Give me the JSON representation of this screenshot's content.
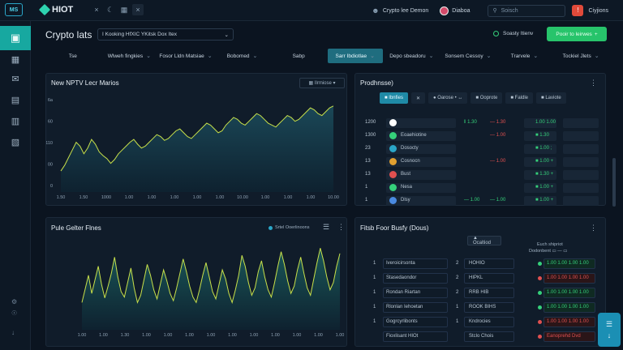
{
  "app": {
    "logo_text": "MS",
    "brand": "HIOT",
    "top_tools": [
      "×",
      "☾",
      "▦",
      "×"
    ]
  },
  "topbar": {
    "user1": "Crypto lee Demon",
    "user2": "Diaboa",
    "search_placeholder": "Soisch",
    "notif_glyph": "!",
    "user3": "Ciyjions"
  },
  "sidebar": {
    "items": [
      "▣",
      "▦",
      "✉",
      "▤",
      "▥",
      "▧"
    ],
    "bottom": [
      "⚙",
      "☉",
      "↓"
    ]
  },
  "header": {
    "title": "Crypto lats",
    "pair_select": "I Kooking HfXIC YKitsk Dox Itex",
    "status": "Soasty Itienv",
    "primary_btn": "Pooir to leirwes"
  },
  "tabs": [
    {
      "label": "Tse",
      "chevron": false,
      "active": false
    },
    {
      "label": "Wlweh fingkies",
      "chevron": true,
      "active": false
    },
    {
      "label": "Fosor Lldn Matsiae",
      "chevron": true,
      "active": false
    },
    {
      "label": "Bobomed",
      "chevron": true,
      "active": false
    },
    {
      "label": "Sabp",
      "chevron": false,
      "active": false
    },
    {
      "label": "Sarr Ibdiotlae",
      "chevron": true,
      "active": true
    },
    {
      "label": "Depo sbeadoru",
      "chevron": true,
      "active": false
    },
    {
      "label": "Sonsem Cessoy",
      "chevron": true,
      "active": false
    },
    {
      "label": "Trarvele",
      "chevron": true,
      "active": false
    },
    {
      "label": "Tockiel Jlets",
      "chevron": true,
      "active": false
    }
  ],
  "chart1": {
    "panel_title": "New NPTV Lecr Marios",
    "range_label": "▦ Ilrmiose ▾",
    "kebab": "⋮"
  },
  "chart_data": [
    {
      "type": "area",
      "title": "New NPTV Lecr Marios",
      "xlabel": "",
      "ylabel": "",
      "y_ticks": [
        "6a",
        "60",
        "110",
        "00",
        "0"
      ],
      "x_ticks": [
        "1.50",
        "1.50",
        "1000",
        "1.00",
        "1.00",
        "1.00",
        "1.00",
        "1.00",
        "10.00",
        "1.00",
        "1.00",
        "1.00",
        "10.00"
      ],
      "ylim": [
        0,
        100
      ],
      "series": [
        {
          "values": [
            22,
            28,
            36,
            44,
            52,
            48,
            40,
            46,
            55,
            50,
            42,
            38,
            35,
            30,
            34,
            40,
            44,
            48,
            52,
            55,
            50,
            46,
            48,
            52,
            56,
            60,
            58,
            54,
            56,
            60,
            64,
            66,
            62,
            58,
            56,
            60,
            64,
            68,
            72,
            70,
            66,
            62,
            64,
            70,
            74,
            78,
            76,
            72,
            70,
            74,
            78,
            82,
            80,
            76,
            72,
            70,
            68,
            72,
            76,
            80,
            78,
            74,
            76,
            80,
            84,
            88,
            86,
            82,
            80,
            84,
            88,
            90
          ]
        }
      ],
      "grid": false,
      "colors": {
        "line": "#c8e04a",
        "fill": "#1b4a5a"
      }
    },
    {
      "type": "area",
      "title": "Pule Gelter Flnes",
      "xlabel": "",
      "ylabel": "",
      "x_ticks": [
        "1.00",
        "1.00",
        "1.30",
        "1.00",
        "1.00",
        "1.00",
        "1.00",
        "1.00",
        "1.00",
        "1.00",
        "1.00",
        "1.00",
        "1.00"
      ],
      "ylim": [
        0,
        100
      ],
      "series": [
        {
          "values": [
            30,
            45,
            60,
            40,
            55,
            70,
            50,
            35,
            48,
            62,
            80,
            58,
            42,
            36,
            52,
            68,
            46,
            30,
            38,
            55,
            72,
            60,
            44,
            34,
            50,
            66,
            54,
            40,
            32,
            46,
            62,
            78,
            64,
            48,
            36,
            30,
            44,
            60,
            74,
            58,
            42,
            34,
            50,
            66,
            56,
            40,
            30,
            44,
            60,
            82,
            70,
            52,
            38,
            46,
            64,
            76,
            58,
            44,
            36,
            52,
            70,
            86,
            72,
            54,
            40,
            48,
            66,
            80,
            62,
            46,
            38,
            56,
            74,
            90,
            76,
            58,
            44,
            52,
            70,
            84
          ]
        }
      ],
      "grid": false,
      "colors": {
        "line": "#c8e04a",
        "fill": "#1a5b5c"
      }
    }
  ],
  "chart2": {
    "panel_title": "Pule Gelter Flnes",
    "legend": "Srtel Ooerlinoons",
    "kebab": "⋮",
    "menu_icon": "☰"
  },
  "watchlist": {
    "panel_title": "Prodhnsse)",
    "kebab": "⋮",
    "toolbar": [
      {
        "label": "■ Ibnfies",
        "primary": true
      },
      {
        "label": "✕",
        "primary": false
      },
      {
        "label": "● Oarose • ↔",
        "primary": false
      },
      {
        "label": "■ Ooprote",
        "primary": false
      },
      {
        "label": "■ Faldle",
        "primary": false
      },
      {
        "label": "■ Laviote",
        "primary": false
      }
    ],
    "rows": [
      {
        "num": "1200",
        "name": "",
        "v1": "‖ 1.30",
        "v2": "— 1.30",
        "v3": "1.00 1.00",
        "v4": "",
        "color": "#ffffff",
        "v1c": "green",
        "v2c": "red"
      },
      {
        "num": "1300",
        "name": "Eoaehiotine",
        "v1": "",
        "v2": "— 1.00",
        "v3": "■ 1.30",
        "v4": "",
        "color": "#35d07a",
        "v1c": "green",
        "v2c": "red"
      },
      {
        "num": "23",
        "name": "Dosocty",
        "v1": "",
        "v2": "",
        "v3": "■ 1.00 ;",
        "v4": "",
        "color": "#2aa6c8",
        "v1c": "green",
        "v2c": "red"
      },
      {
        "num": "13",
        "name": "Cosnocn",
        "v1": "",
        "v2": "— 1.00",
        "v3": "■ 1.00 +",
        "v4": "",
        "color": "#e0a030",
        "v1c": "green",
        "v2c": "red"
      },
      {
        "num": "13",
        "name": "Bust",
        "v1": "",
        "v2": "",
        "v3": "■ 1.30 +",
        "v4": "",
        "color": "#e05050",
        "v1c": "green",
        "v2c": "red"
      },
      {
        "num": "1",
        "name": "Nesa",
        "v1": "",
        "v2": "",
        "v3": "■ 1.00 +",
        "v4": "",
        "color": "#35d07a",
        "v1c": "green",
        "v2c": "red"
      },
      {
        "num": "1",
        "name": "Dlsy",
        "v1": "— 1.00",
        "v2": "— 1.00",
        "v3": "■ 1.00 +",
        "v4": "",
        "color": "#4a8ae0",
        "v1c": "green",
        "v2c": "green"
      }
    ]
  },
  "trades": {
    "panel_title": "Fitsb Foor Busfy (Dous)",
    "kebab": "⋮",
    "center_btn": "▲ Ocaltiod",
    "right_header": "Euch shipriot",
    "right_sub": "Dodonbent ▭ — ▭",
    "rows": [
      {
        "n1": "1",
        "name": "Iveroicirsonta",
        "n2": "2",
        "pair": "HOHIO",
        "val": "1.00 1.00 1.00 1.00",
        "valc": "green"
      },
      {
        "n1": "1",
        "name": "Stasedaondor",
        "n2": "2",
        "pair": "HIPKL",
        "val": "1.00 1.00 1.00 1.00",
        "valc": "red"
      },
      {
        "n1": "1",
        "name": "Rondan Riartan",
        "n2": "2",
        "pair": "RRB HIB",
        "val": "1.00 1.00 1.00 1.00",
        "valc": "green"
      },
      {
        "n1": "1",
        "name": "Rlonlan Iehoetan",
        "n2": "1",
        "pair": "ROOK BIHS",
        "val": "1.00 1.00 1.00 1.00",
        "valc": "green"
      },
      {
        "n1": "1",
        "name": "Gogrcyrlibonts",
        "n2": "1",
        "pair": "Kndrocies",
        "val": "1.00 1.00 1.00 1.00",
        "valc": "red"
      },
      {
        "n1": "",
        "name": "Fioxlisant HIOt",
        "n2": "",
        "pair": "Stclo Chois",
        "val": "Eanoprehd Dvd",
        "valc": "red"
      }
    ]
  },
  "fab": {
    "icon1": "☰",
    "icon2": "↓"
  }
}
